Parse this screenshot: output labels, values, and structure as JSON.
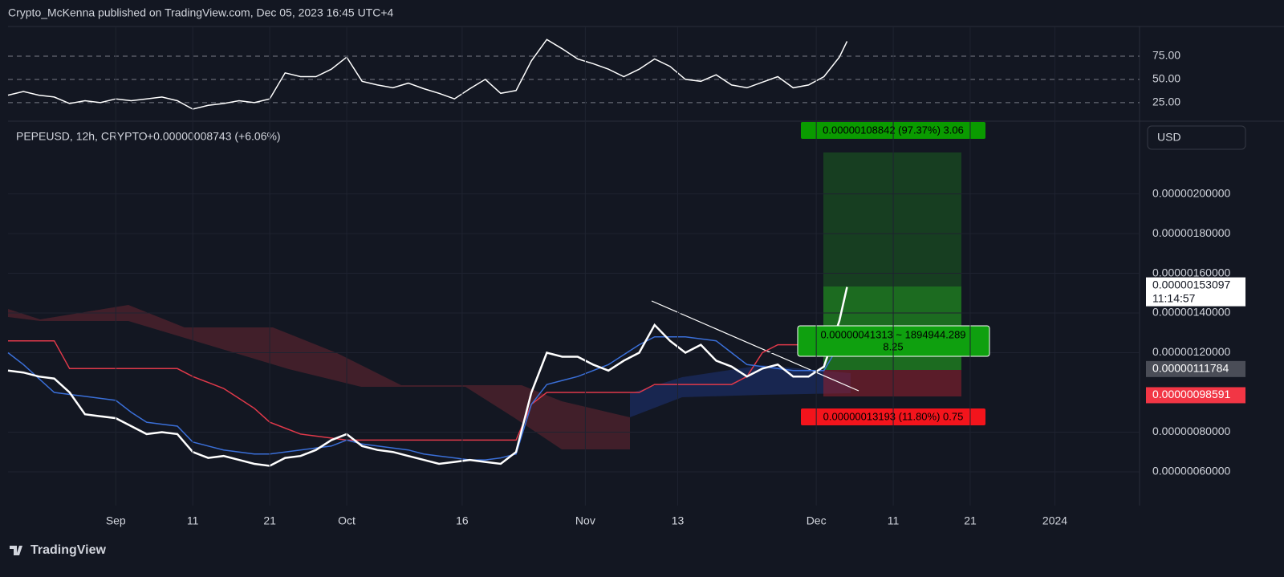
{
  "header": {
    "text": "Crypto_McKenna published on TradingView.com, Dec 05, 2023 16:45 UTC+4"
  },
  "currency": "USD",
  "brand": "TradingView",
  "chart_data": [
    {
      "type": "line",
      "x": [
        "2023-08-18",
        "2023-08-20",
        "2023-08-22",
        "2023-08-24",
        "2023-08-26",
        "2023-08-28",
        "2023-08-30",
        "2023-09-01",
        "2023-09-03",
        "2023-09-05",
        "2023-09-07",
        "2023-09-09",
        "2023-09-11",
        "2023-09-13",
        "2023-09-15",
        "2023-09-17",
        "2023-09-19",
        "2023-09-21",
        "2023-09-23",
        "2023-09-25",
        "2023-09-27",
        "2023-09-29",
        "2023-10-01",
        "2023-10-03",
        "2023-10-05",
        "2023-10-07",
        "2023-10-09",
        "2023-10-11",
        "2023-10-13",
        "2023-10-15",
        "2023-10-17",
        "2023-10-19",
        "2023-10-21",
        "2023-10-23",
        "2023-10-25",
        "2023-10-27",
        "2023-10-29",
        "2023-10-31",
        "2023-11-02",
        "2023-11-04",
        "2023-11-06",
        "2023-11-08",
        "2023-11-10",
        "2023-11-12",
        "2023-11-14",
        "2023-11-16",
        "2023-11-18",
        "2023-11-20",
        "2023-11-22",
        "2023-11-24",
        "2023-11-26",
        "2023-11-28",
        "2023-11-30",
        "2023-12-02",
        "2023-12-04",
        "2023-12-05"
      ],
      "series": [
        {
          "color": "#ffffff",
          "values": [
            33,
            37,
            33,
            31,
            24,
            27,
            25,
            29,
            27,
            29,
            31,
            27,
            18,
            22,
            24,
            27,
            25,
            29,
            57,
            53,
            53,
            61,
            74,
            48,
            44,
            41,
            46,
            40,
            35,
            29,
            40,
            50,
            35,
            38,
            70,
            93,
            83,
            72,
            67,
            61,
            53,
            61,
            72,
            64,
            50,
            48,
            55,
            44,
            41,
            47,
            53,
            41,
            44,
            53,
            74,
            91
          ]
        }
      ],
      "ylim": [
        5,
        107
      ],
      "yticks": [
        {
          "value": 75,
          "label": "75.00"
        },
        {
          "value": 50,
          "label": "50.00"
        },
        {
          "value": 25,
          "label": "25.00"
        }
      ]
    },
    {
      "type": "line",
      "title": "PEPEUSD, 12h, CRYPTO",
      "subtitle": "+0.00000008743 (+6.06%)",
      "x": [
        "2023-08-18",
        "2023-08-20",
        "2023-08-22",
        "2023-08-24",
        "2023-08-26",
        "2023-08-28",
        "2023-08-30",
        "2023-09-01",
        "2023-09-03",
        "2023-09-05",
        "2023-09-07",
        "2023-09-09",
        "2023-09-11",
        "2023-09-13",
        "2023-09-15",
        "2023-09-17",
        "2023-09-19",
        "2023-09-21",
        "2023-09-23",
        "2023-09-25",
        "2023-09-27",
        "2023-09-29",
        "2023-10-01",
        "2023-10-03",
        "2023-10-05",
        "2023-10-07",
        "2023-10-09",
        "2023-10-11",
        "2023-10-13",
        "2023-10-15",
        "2023-10-17",
        "2023-10-19",
        "2023-10-21",
        "2023-10-23",
        "2023-10-25",
        "2023-10-27",
        "2023-10-29",
        "2023-10-31",
        "2023-11-02",
        "2023-11-04",
        "2023-11-06",
        "2023-11-08",
        "2023-11-10",
        "2023-11-12",
        "2023-11-14",
        "2023-11-16",
        "2023-11-18",
        "2023-11-20",
        "2023-11-22",
        "2023-11-24",
        "2023-11-26",
        "2023-11-28",
        "2023-11-30",
        "2023-12-02",
        "2023-12-04",
        "2023-12-05"
      ],
      "series": [
        {
          "color": "#e0394a",
          "values": [
            1.26e-06,
            1.26e-06,
            1.26e-06,
            1.26e-06,
            1.12e-06,
            1.12e-06,
            1.12e-06,
            1.12e-06,
            1.12e-06,
            1.12e-06,
            1.12e-06,
            1.12e-06,
            1.08e-06,
            1.05e-06,
            1.02e-06,
            9.7e-07,
            9.2e-07,
            8.5e-07,
            8.2e-07,
            7.9e-07,
            7.8e-07,
            7.7e-07,
            7.6e-07,
            7.6e-07,
            7.6e-07,
            7.6e-07,
            7.6e-07,
            7.6e-07,
            7.6e-07,
            7.6e-07,
            7.6e-07,
            7.6e-07,
            7.6e-07,
            7.6e-07,
            9.4e-07,
            1e-06,
            1e-06,
            1e-06,
            1e-06,
            1e-06,
            1e-06,
            1e-06,
            1.04e-06,
            1.04e-06,
            1.04e-06,
            1.04e-06,
            1.04e-06,
            1.04e-06,
            1.08e-06,
            1.2e-06,
            1.24e-06,
            1.24e-06,
            1.24e-06,
            1.24e-06,
            1.24e-06,
            1.24e-06
          ]
        },
        {
          "color": "#3a6fd8",
          "values": [
            1.2e-06,
            1.14e-06,
            1.07e-06,
            1e-06,
            9.9e-07,
            9.8e-07,
            9.7e-07,
            9.6e-07,
            9e-07,
            8.5e-07,
            8.4e-07,
            8.3e-07,
            7.5e-07,
            7.3e-07,
            7.1e-07,
            7e-07,
            6.9e-07,
            6.9e-07,
            7e-07,
            7.1e-07,
            7.2e-07,
            7.3e-07,
            7.6e-07,
            7.4e-07,
            7.3e-07,
            7.2e-07,
            7.1e-07,
            6.9e-07,
            6.8e-07,
            6.7e-07,
            6.6e-07,
            6.6e-07,
            6.7e-07,
            6.9e-07,
            9.4e-07,
            1.04e-06,
            1.06e-06,
            1.08e-06,
            1.11e-06,
            1.14e-06,
            1.19e-06,
            1.24e-06,
            1.28e-06,
            1.28e-06,
            1.28e-06,
            1.27e-06,
            1.26e-06,
            1.2e-06,
            1.14e-06,
            1.13e-06,
            1.12e-06,
            1.11e-06,
            1.11e-06,
            1.11e-06,
            1.24e-06,
            1.24e-06
          ]
        },
        {
          "color": "#ffffff",
          "values": [
            1.11e-06,
            1.1e-06,
            1.08e-06,
            1.07e-06,
            1e-06,
            8.9e-07,
            8.8e-07,
            8.7e-07,
            8.3e-07,
            7.9e-07,
            8e-07,
            7.9e-07,
            7e-07,
            6.7e-07,
            6.8e-07,
            6.6e-07,
            6.4e-07,
            6.3e-07,
            6.7e-07,
            6.8e-07,
            7.1e-07,
            7.6e-07,
            7.9e-07,
            7.3e-07,
            7.1e-07,
            7e-07,
            6.8e-07,
            6.6e-07,
            6.4e-07,
            6.5e-07,
            6.6e-07,
            6.5e-07,
            6.4e-07,
            7e-07,
            1e-06,
            1.2e-06,
            1.18e-06,
            1.18e-06,
            1.14e-06,
            1.11e-06,
            1.16e-06,
            1.2e-06,
            1.34e-06,
            1.26e-06,
            1.2e-06,
            1.24e-06,
            1.16e-06,
            1.13e-06,
            1.08e-06,
            1.12e-06,
            1.14e-06,
            1.08e-06,
            1.08e-06,
            1.13e-06,
            1.36e-06,
            1.53097e-06
          ]
        }
      ],
      "xlim": [
        "2023-08-18",
        "2024-01-12"
      ],
      "xticks": [
        {
          "value": "2023-09-01",
          "label": "Sep"
        },
        {
          "value": "2023-09-11",
          "label": "11"
        },
        {
          "value": "2023-09-21",
          "label": "21"
        },
        {
          "value": "2023-10-01",
          "label": "Oct"
        },
        {
          "value": "2023-10-16",
          "label": "16"
        },
        {
          "value": "2023-11-01",
          "label": "Nov"
        },
        {
          "value": "2023-11-13",
          "label": "13"
        },
        {
          "value": "2023-12-01",
          "label": "Dec"
        },
        {
          "value": "2023-12-11",
          "label": "11"
        },
        {
          "value": "2023-12-21",
          "label": "21"
        },
        {
          "value": "2024-01-01",
          "label": "2024"
        }
      ],
      "ylim": [
        4.3e-07,
        2.35e-06
      ],
      "yticks": [
        {
          "value": 2e-06,
          "label": "0.00000200000"
        },
        {
          "value": 1.8e-06,
          "label": "0.00000180000"
        },
        {
          "value": 1.6e-06,
          "label": "0.00000160000"
        },
        {
          "value": 1.4e-06,
          "label": "0.00000140000"
        },
        {
          "value": 1.2e-06,
          "label": "0.00000120000"
        },
        {
          "value": 8e-07,
          "label": "0.00000080000"
        },
        {
          "value": 6e-07,
          "label": "0.00000060000"
        }
      ],
      "price_tags": [
        {
          "value": 1.53097e-06,
          "label": "0.00000153097",
          "time": "11:14:57",
          "color": "#ffffff"
        },
        {
          "value": 1.11784e-06,
          "label": "0.00000111784",
          "color": "#4a4d57"
        },
        {
          "value": 9.8591e-07,
          "label": "0.00000098591",
          "color": "#f23645"
        }
      ],
      "annotations": [
        "0.00000108842 (97.37%) 3.06",
        "0.00000041313 ~ 1894944.289",
        "8.25",
        "0.00000013193 (11.80%) 0.75"
      ]
    }
  ]
}
